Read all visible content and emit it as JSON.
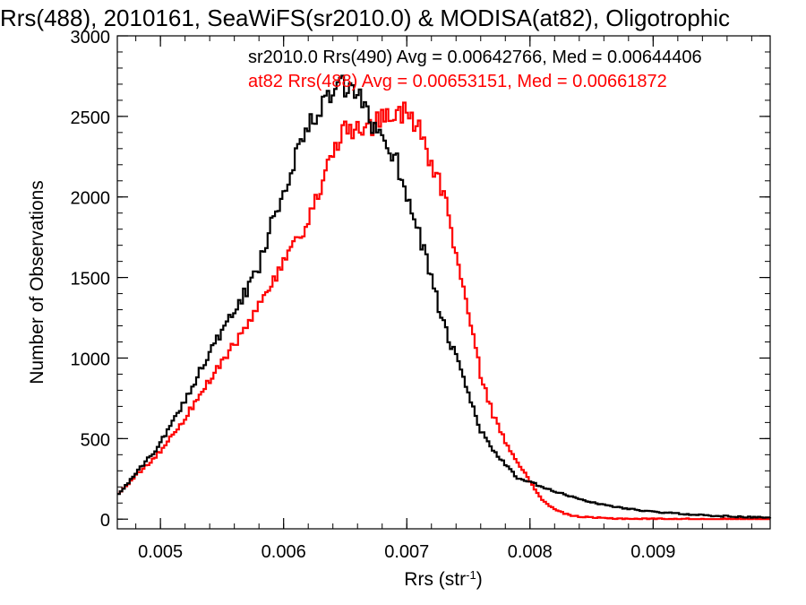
{
  "chart_data": {
    "type": "line",
    "step": true,
    "title": "Rrs(488), 2010161, SeaWiFS(sr2010.0) & MODISA(at82), Oligotrophic",
    "xlabel": "Rrs (str",
    "xlabel_sup": "-1",
    "xlabel_suffix": ")",
    "ylabel": "Number of Observations",
    "xlim": [
      0.00465,
      0.00995
    ],
    "ylim": [
      -60,
      3000
    ],
    "xticks": [
      {
        "value": 0.005,
        "label": "0.005"
      },
      {
        "value": 0.006,
        "label": "0.006"
      },
      {
        "value": 0.007,
        "label": "0.007"
      },
      {
        "value": 0.008,
        "label": "0.008"
      },
      {
        "value": 0.009,
        "label": "0.009"
      }
    ],
    "yticks": [
      {
        "value": 0,
        "label": "0"
      },
      {
        "value": 500,
        "label": "500"
      },
      {
        "value": 1000,
        "label": "1000"
      },
      {
        "value": 1500,
        "label": "1500"
      },
      {
        "value": 2000,
        "label": "2000"
      },
      {
        "value": 2500,
        "label": "2500"
      },
      {
        "value": 3000,
        "label": "3000"
      }
    ],
    "x_minor_step": 0.0002,
    "y_minor_step": 100,
    "grid": false,
    "legend_position": "top-right",
    "series": [
      {
        "name": "sr2010.0 Rrs(490) Avg = 0.00642766, Med = 0.00644406",
        "color": "#000000",
        "x": [
          0.00465,
          0.0048,
          0.005,
          0.0052,
          0.0054,
          0.0056,
          0.0058,
          0.0059,
          0.006,
          0.0061,
          0.0062,
          0.0063,
          0.0064,
          0.0065,
          0.0066,
          0.0067,
          0.0068,
          0.0069,
          0.007,
          0.0071,
          0.0072,
          0.0073,
          0.0074,
          0.0075,
          0.0076,
          0.0077,
          0.0078,
          0.0079,
          0.008,
          0.0081,
          0.0082,
          0.0083,
          0.0084,
          0.0085,
          0.0086,
          0.0087,
          0.0088,
          0.0089,
          0.009,
          0.0091,
          0.0092,
          0.0093,
          0.0094,
          0.0095,
          0.0096,
          0.0097,
          0.0098,
          0.0099
        ],
        "y": [
          150,
          280,
          470,
          740,
          1040,
          1280,
          1560,
          1850,
          2030,
          2280,
          2420,
          2560,
          2650,
          2680,
          2620,
          2480,
          2380,
          2260,
          2020,
          1780,
          1500,
          1200,
          1000,
          780,
          550,
          430,
          340,
          250,
          230,
          200,
          170,
          150,
          125,
          105,
          90,
          75,
          65,
          55,
          45,
          40,
          35,
          30,
          25,
          20,
          18,
          15,
          12,
          10
        ]
      },
      {
        "name": "at82 Rrs(488) Avg = 0.00653151, Med = 0.00661872",
        "color": "#ff0000",
        "x": [
          0.00465,
          0.0048,
          0.005,
          0.0052,
          0.0054,
          0.0056,
          0.0058,
          0.0059,
          0.006,
          0.0061,
          0.0062,
          0.0063,
          0.0064,
          0.0065,
          0.0066,
          0.0067,
          0.0068,
          0.0069,
          0.007,
          0.0071,
          0.0072,
          0.0073,
          0.0074,
          0.0075,
          0.0076,
          0.0077,
          0.0078,
          0.0079,
          0.008,
          0.0081,
          0.0082,
          0.0083,
          0.0084,
          0.0085,
          0.0086,
          0.0087,
          0.0088,
          0.0089,
          0.009,
          0.0091,
          0.0092,
          0.0093,
          0.0094,
          0.0095,
          0.0096,
          0.0097,
          0.0098,
          0.0099
        ],
        "y": [
          150,
          270,
          420,
          630,
          860,
          1080,
          1320,
          1450,
          1580,
          1700,
          1830,
          2050,
          2310,
          2400,
          2430,
          2440,
          2480,
          2510,
          2540,
          2440,
          2200,
          2030,
          1650,
          1280,
          900,
          650,
          480,
          360,
          230,
          120,
          60,
          30,
          15,
          10,
          6,
          4,
          3,
          2,
          2,
          1,
          1,
          1,
          0,
          0,
          0,
          0,
          0,
          0
        ]
      }
    ]
  }
}
